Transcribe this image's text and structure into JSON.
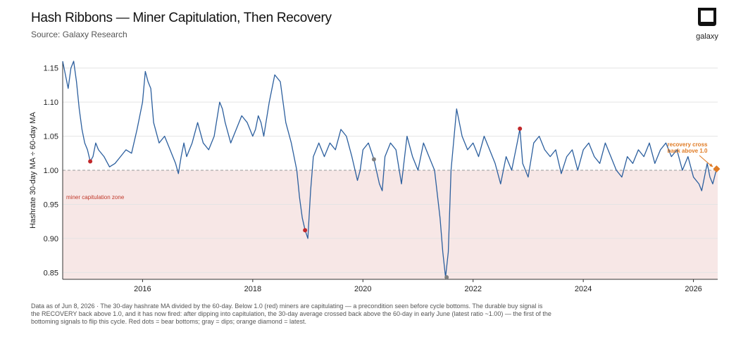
{
  "header": {
    "title": "Hash Ribbons — Miner Capitulation, Then Recovery",
    "subtitle": "Source: Galaxy Research",
    "logo_text": "galaxy"
  },
  "footnote": "Data as of Jun 8, 2026 · The 30-day hashrate MA divided by the 60-day. Below 1.0 (red) miners are capitulating — a precondition seen before cycle bottoms. The durable buy signal is the RECOVERY back above 1.0, and it has now fired: after dipping into capitulation, the 30-day average crossed back above the 60-day in early June (latest ratio ~1.00) — the first of the bottoming signals to flip this cycle. Red dots = bear bottoms; gray = dips; orange diamond = latest.",
  "colors": {
    "line": "#2c5f9e",
    "zone_fill": "#f7e7e6",
    "threshold": "#999999",
    "bear_dot": "#c0282b",
    "dip_dot": "#808080",
    "latest": "#e07b24"
  },
  "chart_data": {
    "type": "line",
    "title": "Hash Ribbons — Miner Capitulation, Then Recovery",
    "xlabel": "",
    "ylabel": "Hashrate 30-day MA ÷ 60-day MA",
    "xlim": [
      2014.55,
      2026.44
    ],
    "ylim": [
      0.84,
      1.16
    ],
    "x_ticks": [
      2016,
      2018,
      2020,
      2022,
      2024,
      2026
    ],
    "y_ticks": [
      0.85,
      0.9,
      0.95,
      1.0,
      1.05,
      1.1,
      1.15
    ],
    "x_tick_labels": [
      "2016",
      "2018",
      "2020",
      "2022",
      "2024",
      "2026"
    ],
    "y_tick_labels": [
      "0.85",
      "0.90",
      "0.95",
      "1.00",
      "1.05",
      "1.10",
      "1.15"
    ],
    "threshold": 1.0,
    "grid": true,
    "zone_label": "miner capitulation zone",
    "callout_label_lines": [
      "recovery cross",
      "back above 1.0"
    ],
    "series": [
      {
        "x": [
          2014.55,
          2014.6,
          2014.65,
          2014.7,
          2014.75,
          2014.8,
          2014.85,
          2014.9,
          2014.95,
          2015.0,
          2015.05,
          2015.1,
          2015.15,
          2015.2,
          2015.3,
          2015.4,
          2015.5,
          2015.6,
          2015.7,
          2015.8,
          2015.9,
          2016.0,
          2016.05,
          2016.1,
          2016.15,
          2016.2,
          2016.3,
          2016.4,
          2016.5,
          2016.6,
          2016.65,
          2016.7,
          2016.75,
          2016.8,
          2016.9,
          2017.0,
          2017.1,
          2017.2,
          2017.3,
          2017.4,
          2017.45,
          2017.5,
          2017.6,
          2017.7,
          2017.8,
          2017.9,
          2018.0,
          2018.05,
          2018.1,
          2018.15,
          2018.2,
          2018.3,
          2018.4,
          2018.5,
          2018.6,
          2018.7,
          2018.8,
          2018.85,
          2018.9,
          2018.95,
          2019.0,
          2019.05,
          2019.1,
          2019.2,
          2019.3,
          2019.4,
          2019.5,
          2019.6,
          2019.7,
          2019.8,
          2019.9,
          2019.95,
          2020.0,
          2020.1,
          2020.2,
          2020.3,
          2020.35,
          2020.4,
          2020.5,
          2020.6,
          2020.7,
          2020.8,
          2020.9,
          2021.0,
          2021.1,
          2021.2,
          2021.3,
          2021.4,
          2021.45,
          2021.5,
          2021.55,
          2021.6,
          2021.7,
          2021.8,
          2021.9,
          2022.0,
          2022.1,
          2022.2,
          2022.3,
          2022.4,
          2022.5,
          2022.6,
          2022.7,
          2022.8,
          2022.85,
          2022.9,
          2023.0,
          2023.1,
          2023.2,
          2023.3,
          2023.4,
          2023.5,
          2023.6,
          2023.7,
          2023.8,
          2023.9,
          2024.0,
          2024.1,
          2024.2,
          2024.3,
          2024.4,
          2024.5,
          2024.6,
          2024.7,
          2024.8,
          2024.9,
          2025.0,
          2025.1,
          2025.2,
          2025.3,
          2025.4,
          2025.5,
          2025.6,
          2025.7,
          2025.8,
          2025.9,
          2026.0,
          2026.1,
          2026.15,
          2026.2,
          2026.25,
          2026.3,
          2026.35,
          2026.42
        ],
        "y": [
          1.16,
          1.14,
          1.12,
          1.15,
          1.16,
          1.13,
          1.09,
          1.06,
          1.04,
          1.03,
          1.013,
          1.02,
          1.04,
          1.03,
          1.02,
          1.005,
          1.01,
          1.02,
          1.03,
          1.025,
          1.06,
          1.1,
          1.145,
          1.13,
          1.12,
          1.07,
          1.04,
          1.05,
          1.03,
          1.01,
          0.995,
          1.02,
          1.04,
          1.02,
          1.04,
          1.07,
          1.04,
          1.03,
          1.05,
          1.1,
          1.09,
          1.07,
          1.04,
          1.06,
          1.08,
          1.07,
          1.05,
          1.06,
          1.08,
          1.07,
          1.05,
          1.1,
          1.14,
          1.13,
          1.07,
          1.04,
          1.0,
          0.96,
          0.93,
          0.912,
          0.9,
          0.97,
          1.02,
          1.04,
          1.02,
          1.04,
          1.03,
          1.06,
          1.05,
          1.02,
          0.985,
          1.0,
          1.03,
          1.04,
          1.016,
          0.98,
          0.97,
          1.02,
          1.04,
          1.03,
          0.98,
          1.05,
          1.02,
          1.0,
          1.04,
          1.02,
          1.0,
          0.93,
          0.88,
          0.843,
          0.88,
          1.0,
          1.09,
          1.05,
          1.03,
          1.04,
          1.02,
          1.05,
          1.03,
          1.01,
          0.98,
          1.02,
          1.0,
          1.04,
          1.061,
          1.01,
          0.99,
          1.04,
          1.05,
          1.03,
          1.02,
          1.03,
          0.995,
          1.02,
          1.03,
          1.0,
          1.03,
          1.04,
          1.02,
          1.01,
          1.04,
          1.02,
          1.0,
          0.99,
          1.02,
          1.01,
          1.03,
          1.02,
          1.04,
          1.01,
          1.03,
          1.04,
          1.02,
          1.03,
          1.0,
          1.02,
          0.99,
          0.98,
          0.97,
          0.99,
          1.01,
          0.99,
          0.98,
          1.002
        ]
      }
    ],
    "markers": [
      {
        "kind": "bear",
        "x": 2015.05,
        "y": 1.013
      },
      {
        "kind": "bear",
        "x": 2018.95,
        "y": 0.912
      },
      {
        "kind": "dip",
        "x": 2020.2,
        "y": 1.016
      },
      {
        "kind": "dip",
        "x": 2021.52,
        "y": 0.843
      },
      {
        "kind": "bear",
        "x": 2022.85,
        "y": 1.061
      },
      {
        "kind": "latest",
        "x": 2026.42,
        "y": 1.002
      }
    ]
  }
}
